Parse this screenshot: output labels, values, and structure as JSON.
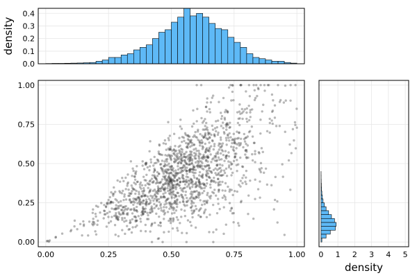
{
  "chart_data": [
    {
      "id": "top-marginal",
      "type": "bar",
      "subtype": "histogram",
      "xlim": [
        -0.03,
        1.03
      ],
      "ylim": [
        0,
        0.44
      ],
      "bin_width": 0.025,
      "bin_start": 0.0,
      "values": [
        0.002,
        0.003,
        0.003,
        0.004,
        0.005,
        0.006,
        0.008,
        0.01,
        0.02,
        0.03,
        0.05,
        0.05,
        0.07,
        0.08,
        0.11,
        0.13,
        0.15,
        0.2,
        0.25,
        0.27,
        0.33,
        0.37,
        0.44,
        0.38,
        0.4,
        0.37,
        0.32,
        0.28,
        0.27,
        0.21,
        0.17,
        0.13,
        0.08,
        0.05,
        0.04,
        0.03,
        0.02,
        0.02,
        0.01,
        0.005
      ],
      "yticks": [
        0.0,
        0.1,
        0.2,
        0.3,
        0.4
      ],
      "ytick_labels": [
        "0.0",
        "0.1",
        "0.2",
        "0.3",
        "0.4"
      ],
      "ylabel": "density",
      "xlabel": "",
      "fill_color": "#5EB9F6",
      "grid": true
    },
    {
      "id": "main-scatter",
      "type": "scatter",
      "xlim": [
        -0.03,
        1.03
      ],
      "ylim": [
        -0.03,
        1.03
      ],
      "xticks": [
        0.0,
        0.25,
        0.5,
        0.75,
        1.0
      ],
      "xtick_labels": [
        "0.00",
        "0.25",
        "0.50",
        "0.75",
        "1.00"
      ],
      "yticks": [
        0.0,
        0.25,
        0.5,
        0.75,
        1.0
      ],
      "ytick_labels": [
        "0.00",
        "0.25",
        "0.50",
        "0.75",
        "1.00"
      ],
      "xlabel": "",
      "ylabel": "",
      "point_color": "#333333",
      "point_alpha": 0.35,
      "n_points": 1500,
      "description_of_relation": "y roughly equals x with spread increasing with x; clipped at 0 and 1",
      "grid": true
    },
    {
      "id": "right-marginal",
      "type": "bar",
      "subtype": "histogram",
      "orientation": "horizontal",
      "xlim": [
        -0.12,
        5.2
      ],
      "ylim": [
        -0.03,
        1.03
      ],
      "bin_width": 0.025,
      "bin_start": 0.0,
      "values": [
        0.05,
        0.3,
        0.55,
        0.85,
        0.9,
        0.8,
        0.62,
        0.45,
        0.3,
        0.2,
        0.12,
        0.08,
        0.05,
        0.03,
        0.02,
        0.01,
        0.005,
        0.003
      ],
      "xticks": [
        0,
        1,
        2,
        3,
        4,
        5
      ],
      "xtick_labels": [
        "0",
        "1",
        "2",
        "3",
        "4",
        "5"
      ],
      "xlabel": "density",
      "ylabel": "",
      "fill_color": "#5EB9F6",
      "grid": true
    }
  ]
}
